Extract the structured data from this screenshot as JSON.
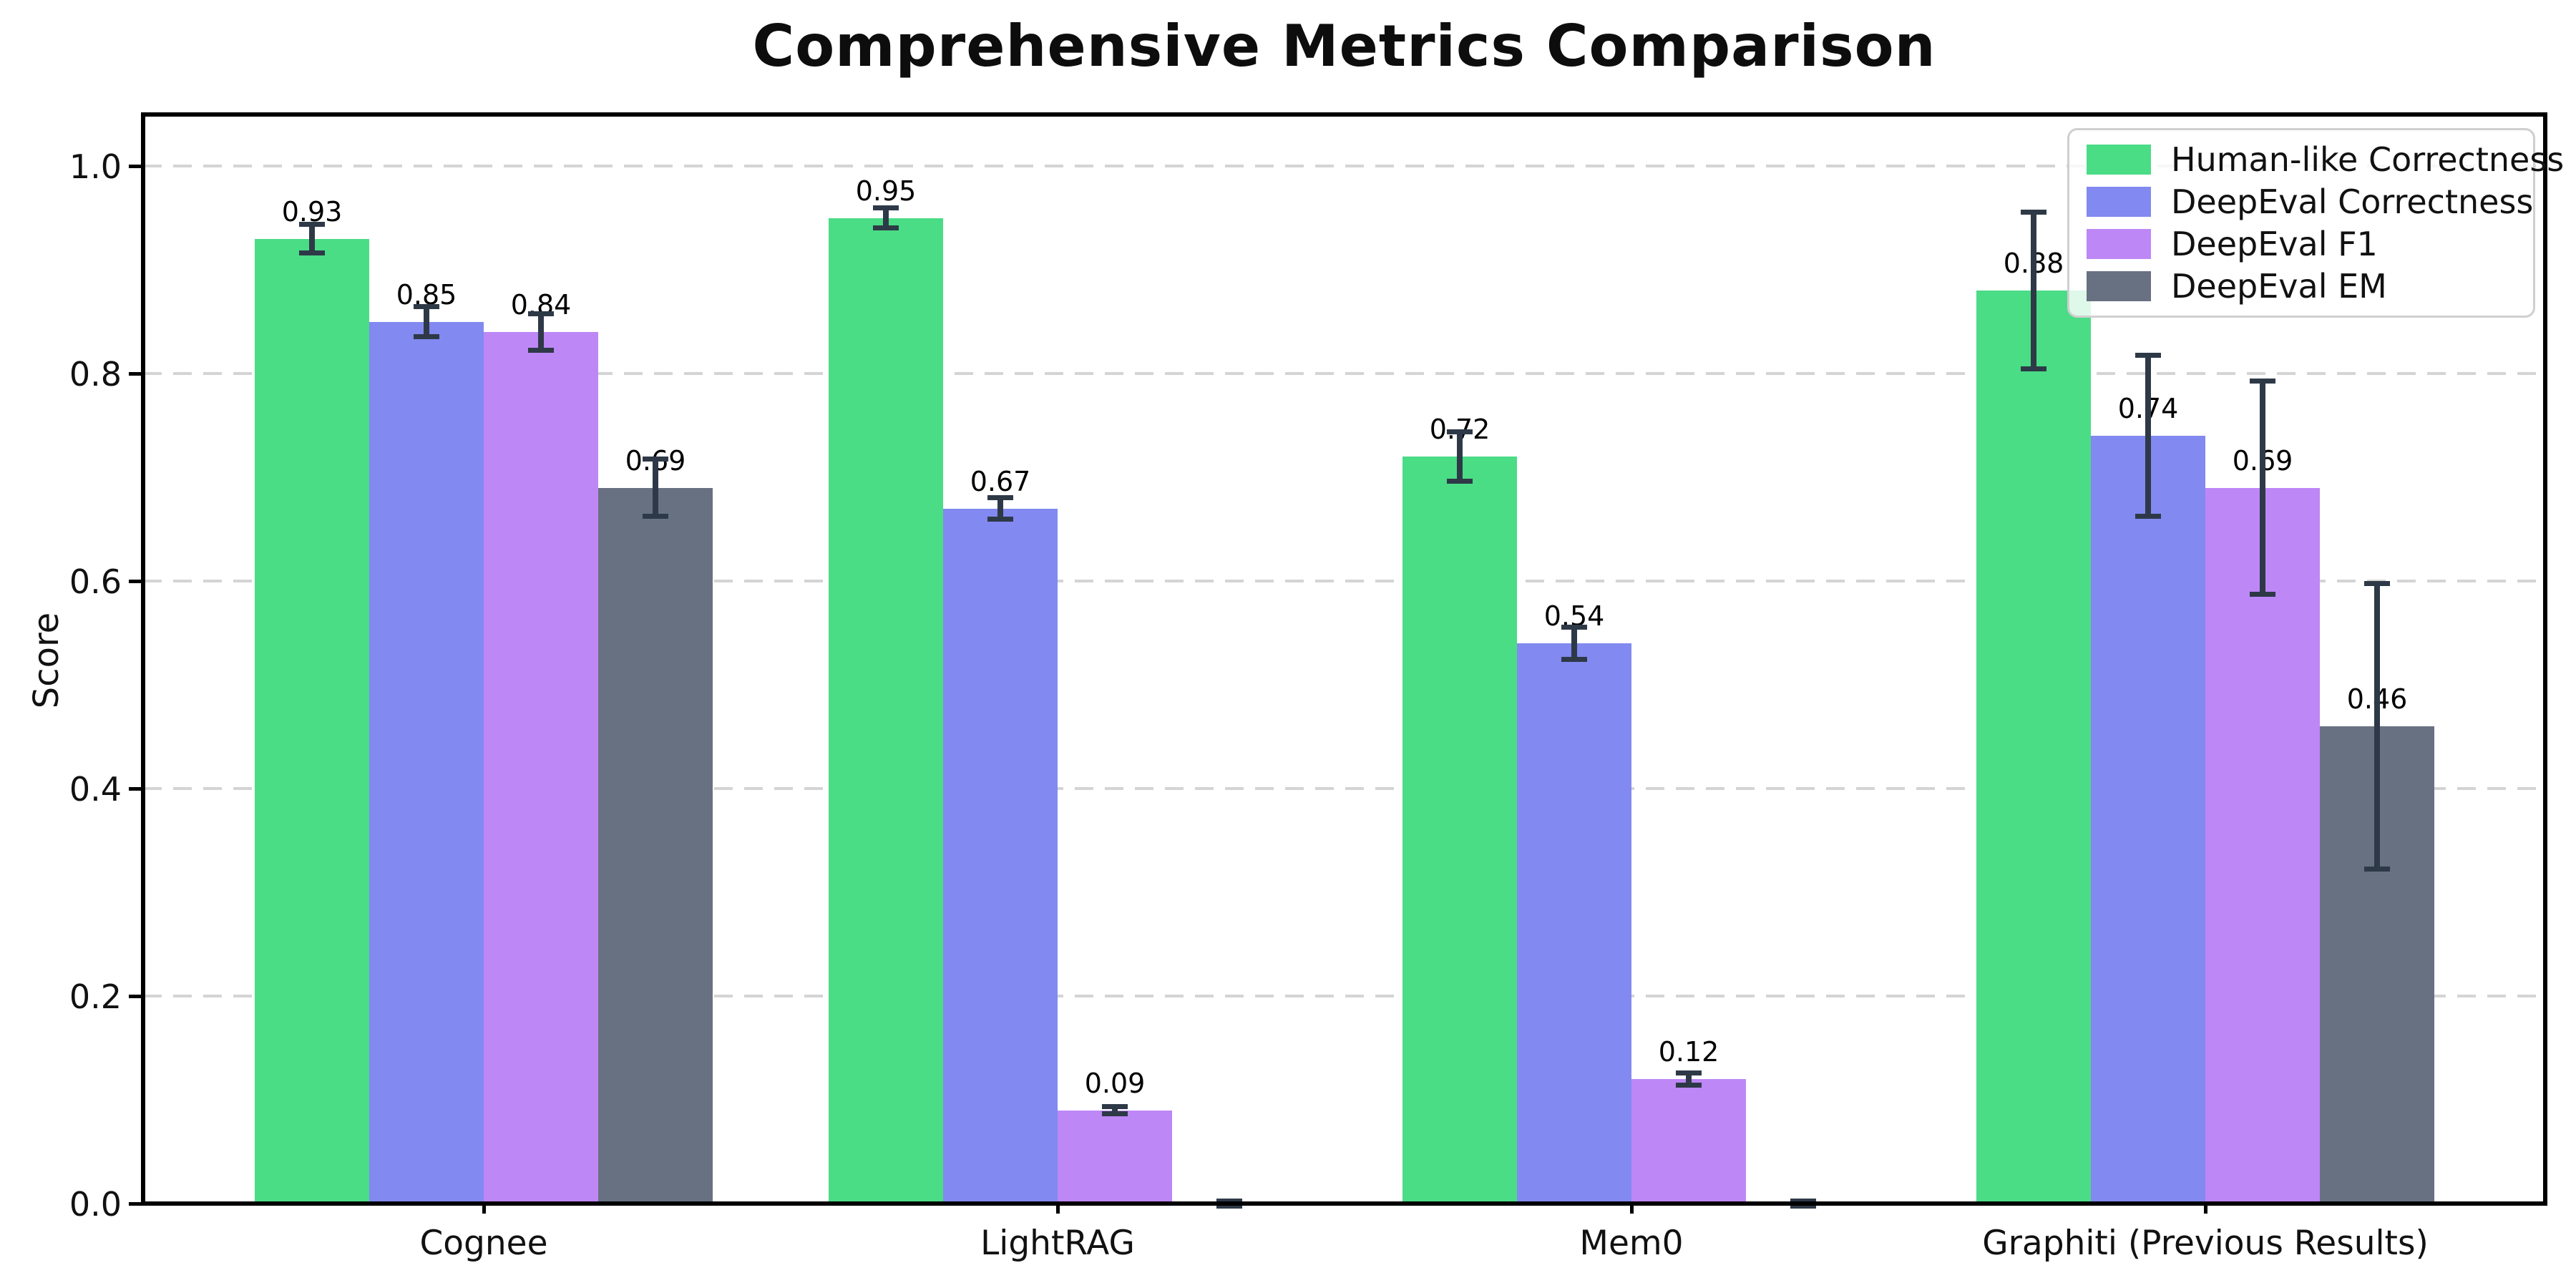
{
  "chart_data": {
    "type": "bar",
    "title": "Comprehensive Metrics Comparison",
    "ylabel": "Score",
    "xlabel": "",
    "ylim": [
      0.0,
      1.05
    ],
    "yticks": [
      0.0,
      0.2,
      0.4,
      0.6,
      0.8,
      1.0
    ],
    "ytick_labels": [
      "0.0",
      "0.2",
      "0.4",
      "0.6",
      "0.8",
      "1.0"
    ],
    "grid": {
      "axis": "y",
      "style": "dashed",
      "color": "#d4d4d4"
    },
    "legend_position": "upper right",
    "background_color": "#ffffff",
    "error_bar_color": "#2e3947",
    "categories": [
      "Cognee",
      "LightRAG",
      "Mem0",
      "Graphiti (Previous Results)"
    ],
    "series": [
      {
        "name": "Human-like Correctness",
        "color": "#4bdc86",
        "values": [
          0.93,
          0.95,
          0.72,
          0.88
        ],
        "errors": [
          0.016,
          0.012,
          0.026,
          0.078
        ],
        "labels": [
          "0.93",
          "0.95",
          "0.72",
          "0.88"
        ]
      },
      {
        "name": "DeepEval Correctness",
        "color": "#8289f0",
        "values": [
          0.85,
          0.67,
          0.54,
          0.74
        ],
        "errors": [
          0.017,
          0.013,
          0.018,
          0.08
        ],
        "labels": [
          "0.85",
          "0.67",
          "0.54",
          "0.74"
        ]
      },
      {
        "name": "DeepEval F1",
        "color": "#bd87f6",
        "values": [
          0.84,
          0.09,
          0.12,
          0.69
        ],
        "errors": [
          0.02,
          0.006,
          0.008,
          0.105
        ],
        "labels": [
          "0.84",
          "0.09",
          "0.12",
          "0.69"
        ]
      },
      {
        "name": "DeepEval EM",
        "color": "#687181",
        "values": [
          0.69,
          0.0,
          0.0,
          0.46
        ],
        "errors": [
          0.03,
          0.005,
          0.005,
          0.14
        ],
        "labels": [
          "0.69",
          "",
          "",
          "0.46"
        ]
      }
    ]
  }
}
